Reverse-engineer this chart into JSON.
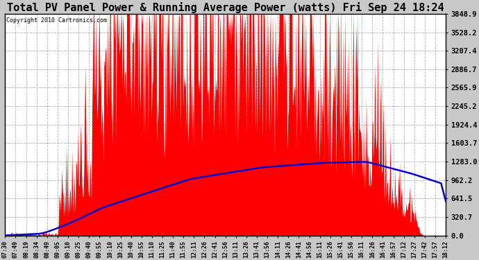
{
  "title": "Total PV Panel Power & Running Average Power (watts) Fri Sep 24 18:24",
  "copyright": "Copyright 2010 Cartronics.com",
  "ylabel_right_ticks": [
    0.0,
    320.7,
    641.5,
    962.2,
    1283.0,
    1603.7,
    1924.4,
    2245.2,
    2565.9,
    2886.7,
    3207.4,
    3528.2,
    3848.9
  ],
  "ymax": 3848.9,
  "ymin": 0.0,
  "bg_color": "#c8c8c8",
  "plot_bg_color": "#ffffff",
  "bar_color": "#ff0000",
  "avg_color": "#0000cc",
  "grid_color": "#b0b0b0",
  "title_fontsize": 11,
  "x_labels": [
    "07:30",
    "07:49",
    "08:19",
    "08:34",
    "08:49",
    "09:05",
    "09:10",
    "09:25",
    "09:40",
    "09:55",
    "10:10",
    "10:25",
    "10:40",
    "10:55",
    "11:10",
    "11:25",
    "11:40",
    "11:55",
    "12:11",
    "12:26",
    "12:41",
    "12:56",
    "13:11",
    "13:26",
    "13:41",
    "13:56",
    "14:11",
    "14:26",
    "14:41",
    "14:56",
    "15:11",
    "15:26",
    "15:41",
    "15:56",
    "16:11",
    "16:26",
    "16:41",
    "16:57",
    "17:12",
    "17:27",
    "17:42",
    "17:57",
    "18:12"
  ]
}
